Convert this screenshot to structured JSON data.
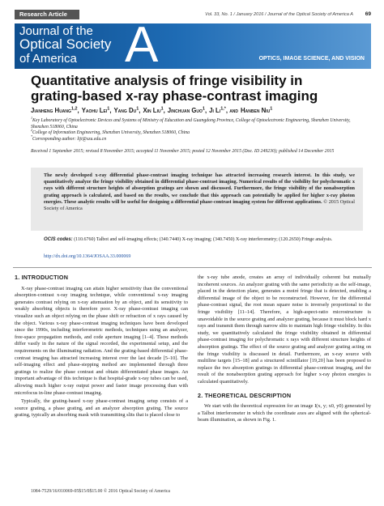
{
  "header": {
    "label": "Research Article",
    "citation": "Vol. 33, No. 1 / January 2016 / Journal of the Optical Society of America A",
    "page": "69"
  },
  "banner": {
    "line1": "Journal of the",
    "line2": "Optical Society",
    "line3": "of America",
    "letter": "A",
    "tagline": "OPTICS, IMAGE SCIENCE, AND VISION"
  },
  "title": "Quantitative analysis of fringe visibility in grating-based x-ray phase-contrast imaging",
  "authors": [
    {
      "name": "Jianheng Huang",
      "sup": "1,2",
      "after": ","
    },
    {
      "name": "Yaohu Lei",
      "sup": "1",
      "after": ","
    },
    {
      "name": "Yang Du",
      "sup": "1",
      "after": ","
    },
    {
      "name": "Xin Liu",
      "sup": "1",
      "after": ","
    },
    {
      "name": "Jinchuan Guo",
      "sup": "1",
      "after": ","
    },
    {
      "name": "Ji Li",
      "sup": "1,*",
      "after": ", and"
    },
    {
      "name": "Hanben Niu",
      "sup": "1",
      "after": ""
    }
  ],
  "affiliations": [
    {
      "mark": "1",
      "text": "Key Laboratory of Optoelectronic Devices and Systems of Ministry of Education and Guangdong Province, College of Optoelectronic Engineering, Shenzhen University, Shenzhen 518060, China"
    },
    {
      "mark": "2",
      "text": "College of Information Engineering, Shenzhen University, Shenzhen 518060, China"
    },
    {
      "mark": "*",
      "text": "Corresponding author: liji@szu.edu.cn"
    }
  ],
  "history": "Received 1 September 2015; revised 8 November 2015; accepted 11 November 2015; posted 12 November 2015 (Doc. ID 249230); published 14 December 2015",
  "abstract": {
    "text": "The newly developed x-ray differential phase-contrast imaging technique has attracted increasing research interest. In this study, we quantitatively analyze the fringe visibility obtained in differential phase-contrast imaging. Numerical results of the visibility for polychromatic x rays with different structure heights of absorption gratings are shown and discussed. Furthermore, the fringe visibility of the nonabsorption grating approach is calculated, and based on the results, we conclude that this approach can potentially be applied for higher x-ray photon energies. These analytic results will be useful for designing a differential phase-contrast imaging system for different applications.",
    "copyright": "© 2015 Optical Society of America"
  },
  "ocis": {
    "label": "OCIS codes:",
    "text": "(110.6760) Talbot and self-imaging effects; (340.7440) X-ray imaging; (340.7450) X-ray interferometry; (120.2650) Fringe analysis."
  },
  "doi": "http://dx.doi.org/10.1364/JOSAA.33.000069",
  "sections": [
    {
      "heading": "1. INTRODUCTION",
      "paragraphs": [
        "X-ray phase-contrast imaging can attain higher sensitivity than the conventional absorption-contrast x-ray imaging technique, while conventional x-ray imaging generates contrast relying on x-ray attenuation by an object, and its sensitivity to weakly absorbing objects is therefore poor. X-ray phase-contrast imaging can visualize such an object relying on the phase shift or refraction of x rays caused by the object. Various x-ray phase-contrast imaging techniques have been developed since the 1990s, including interferometric methods, techniques using an analyzer, free-space propagation methods, and code aperture imaging [1–4]. These methods differ vastly in the nature of the signal recorded, the experimental setup, and the requirements on the illuminating radiation. And the grating-based differential phase-contrast imaging has attracted increasing interest over the last decade [5–10]. The self-imaging effect and phase-stepping method are implemented through three gratings to realize the phase contrast and obtain differentiated phase images. An important advantage of this technique is that hospital-grade x-ray tubes can be used, allowing much higher x-ray output power and faster image processing than with microfocus in-line phase-contrast imaging.",
        "Typically, the grating-based x-ray phase-contrast imaging setup consists of a source grating, a phase grating, and an analyzer absorption grating. The source grating, typically an absorbing mask with transmitting slits that is placed close to"
      ]
    },
    {
      "continuation": "the x-ray tube anode, creates an array of individually coherent but mutually incoherent sources. An analyzer grating with the same periodicity as the self-image, placed in the detection plane, generates a moiré fringe that is detected, enabling a differential image of the object to be reconstructed. However, for the differential phase-contrast signal, the root mean square noise is inversely proportional to the fringe visibility [11–14]. Therefore, a high-aspect-ratio microstructure is unavoidable in the source grating and analyzer grating, because it must block hard x rays and transmit them through narrow slits to maintain high fringe visibility. In this study, we quantitatively calculated the fringe visibility obtained in differential phase-contrast imaging for polychromatic x rays with different structure heights of absorption gratings. The effect of the source grating and analyzer grating acting on the fringe visibility is discussed in detail. Furthermore, an x-ray source with multiline targets [15–18] and a structured scintillator [19,20] has been proposed to replace the two absorption gratings in differential phase-contrast imaging, and the result of the nonabsorption grating approach for higher x-ray photon energies is calculated quantitatively.",
      "heading": "2. THEORETICAL DESCRIPTION",
      "paragraphs": [
        "We start with the theoretical expression for an image I(x, y; x0, y0) generated by a Talbot interferometer in which the coordinate axes are aligned with the spherical-beam illumination, as shown in Fig. 1."
      ]
    }
  ],
  "footer": "1084-7529/16/010069-05$15/0$15.00 © 2016 Optical Society of America"
}
